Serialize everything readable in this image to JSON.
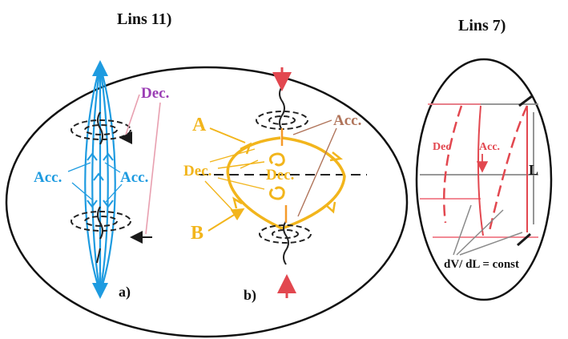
{
  "titles": {
    "left": "Lins 11)",
    "right": "Lins 7)"
  },
  "panel_a": {
    "label": "a)",
    "dec": "Dec.",
    "acc_left": "Acc.",
    "acc_right": "Acc."
  },
  "panel_b": {
    "label": "b)",
    "point_a": "A",
    "point_b": "B",
    "dec_left": "Dec.",
    "dec_right": "Dec.",
    "acc": "Acc."
  },
  "panel_right": {
    "dec": "Dec",
    "acc": "Acc.",
    "length": "L",
    "formula": "dV/ dL = const"
  },
  "colors": {
    "blue": "#1e9be0",
    "purple": "#9b3fb5",
    "yellow": "#f2b51c",
    "tan": "#b0745a",
    "red": "#e2474f",
    "pink": "#f07a86",
    "dark": "#1a1a1a",
    "grey": "#8a8a8a"
  }
}
